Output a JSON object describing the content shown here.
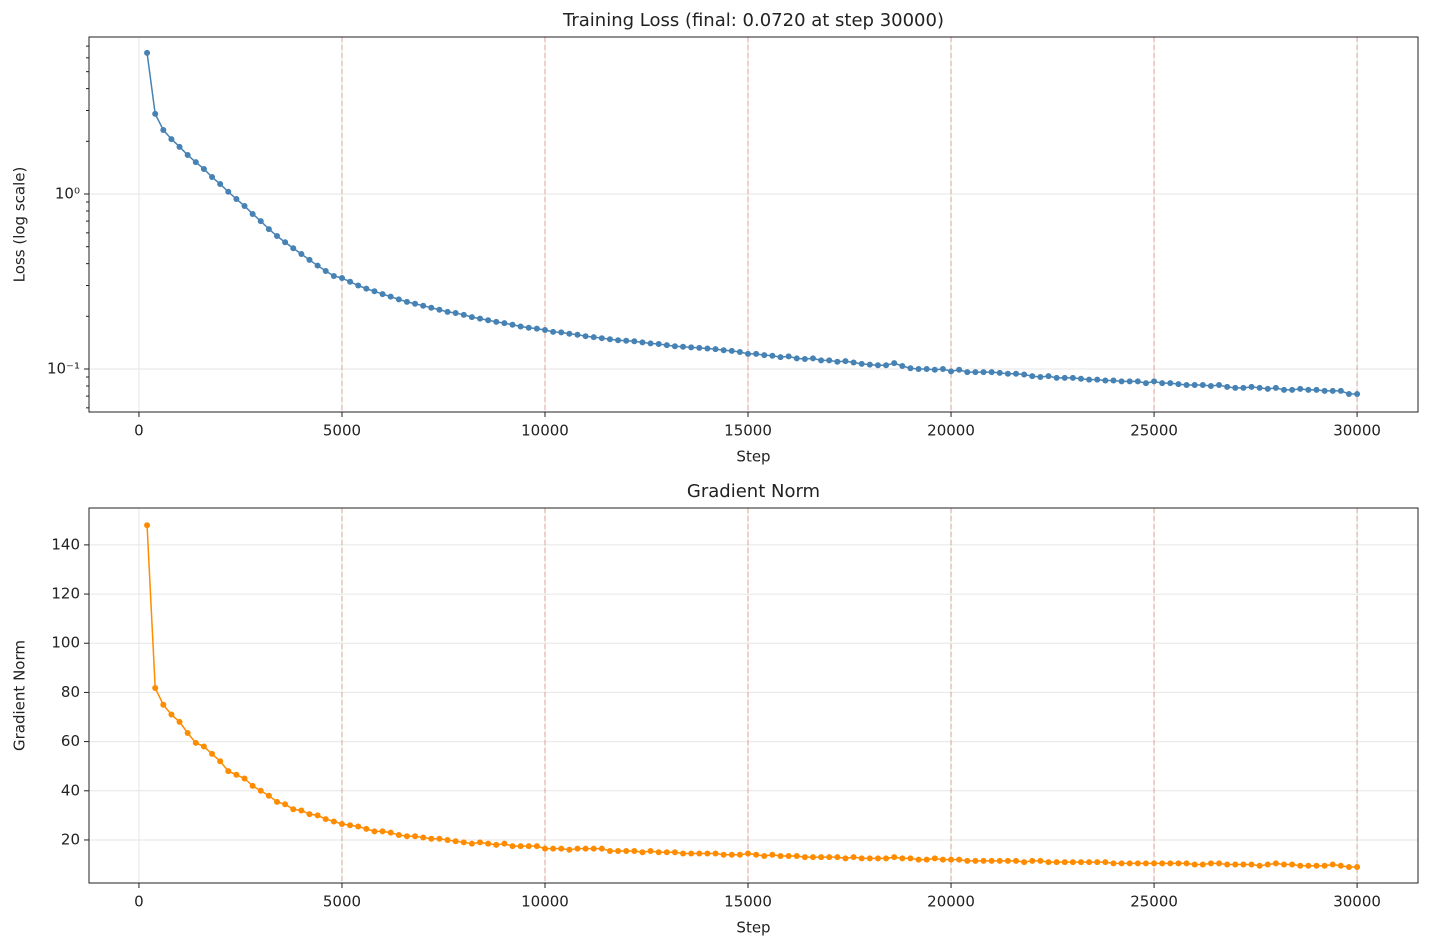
{
  "chart_data": [
    {
      "type": "line",
      "title": "Training Loss (final: 0.0720 at step 30000)",
      "xlabel": "Step",
      "ylabel": "Loss (log scale)",
      "color": "#4682b4",
      "ylog": true,
      "grid": true,
      "xlim": [
        -1230,
        31500
      ],
      "xticks": [
        0,
        5000,
        10000,
        15000,
        20000,
        25000,
        30000
      ],
      "ylim": [
        0.0568,
        7.89
      ],
      "yticks": [
        {
          "value": 0.1,
          "label": "10⁻¹"
        },
        {
          "value": 1,
          "label": "10⁰"
        }
      ],
      "yminorticks": [
        0.06,
        0.07,
        0.08,
        0.09,
        0.2,
        0.3,
        0.4,
        0.5,
        0.6,
        0.7,
        0.8,
        0.9,
        2,
        3,
        4,
        5,
        6,
        7
      ],
      "vlines": [
        5000,
        10000,
        15000,
        20000,
        25000,
        30000
      ],
      "x": [
        200,
        400,
        600,
        800,
        1000,
        1200,
        1400,
        1600,
        1800,
        2000,
        2200,
        2400,
        2600,
        2800,
        3000,
        3200,
        3400,
        3600,
        3800,
        4000,
        4200,
        4400,
        4600,
        4800,
        5000,
        5200,
        5400,
        5600,
        5800,
        6000,
        6200,
        6400,
        6600,
        6800,
        7000,
        7200,
        7400,
        7600,
        7800,
        8000,
        8200,
        8400,
        8600,
        8800,
        9000,
        9200,
        9400,
        9600,
        9800,
        10000,
        10200,
        10400,
        10600,
        10800,
        11000,
        11200,
        11400,
        11600,
        11800,
        12000,
        12200,
        12400,
        12600,
        12800,
        13000,
        13200,
        13400,
        13600,
        13800,
        14000,
        14200,
        14400,
        14600,
        14800,
        15000,
        15200,
        15400,
        15600,
        15800,
        16000,
        16200,
        16400,
        16600,
        16800,
        17000,
        17200,
        17400,
        17600,
        17800,
        18000,
        18200,
        18400,
        18600,
        18800,
        19000,
        19200,
        19400,
        19600,
        19800,
        20000,
        20200,
        20400,
        20600,
        20800,
        21000,
        21200,
        21400,
        21600,
        21800,
        22000,
        22200,
        22400,
        22600,
        22800,
        23000,
        23200,
        23400,
        23600,
        23800,
        24000,
        24200,
        24400,
        24600,
        24800,
        25000,
        25200,
        25400,
        25600,
        25800,
        26000,
        26200,
        26400,
        26600,
        26800,
        27000,
        27200,
        27400,
        27600,
        27800,
        28000,
        28200,
        28400,
        28600,
        28800,
        29000,
        29200,
        29400,
        29600,
        29800,
        30000
      ],
      "values": [
        6.4,
        2.87,
        2.32,
        2.06,
        1.86,
        1.67,
        1.52,
        1.39,
        1.25,
        1.14,
        1.03,
        0.936,
        0.854,
        0.769,
        0.7,
        0.63,
        0.575,
        0.53,
        0.49,
        0.454,
        0.42,
        0.39,
        0.363,
        0.34,
        0.331,
        0.315,
        0.3,
        0.288,
        0.278,
        0.268,
        0.259,
        0.25,
        0.242,
        0.236,
        0.23,
        0.224,
        0.218,
        0.212,
        0.209,
        0.204,
        0.198,
        0.194,
        0.19,
        0.186,
        0.183,
        0.179,
        0.175,
        0.172,
        0.17,
        0.167,
        0.163,
        0.162,
        0.159,
        0.157,
        0.154,
        0.152,
        0.15,
        0.148,
        0.146,
        0.145,
        0.144,
        0.142,
        0.14,
        0.139,
        0.137,
        0.135,
        0.134,
        0.133,
        0.132,
        0.131,
        0.13,
        0.128,
        0.127,
        0.125,
        0.122,
        0.122,
        0.12,
        0.119,
        0.117,
        0.118,
        0.115,
        0.114,
        0.115,
        0.112,
        0.112,
        0.11,
        0.111,
        0.109,
        0.107,
        0.106,
        0.105,
        0.105,
        0.108,
        0.104,
        0.101,
        0.1,
        0.1,
        0.099,
        0.1,
        0.097,
        0.099,
        0.096,
        0.096,
        0.096,
        0.096,
        0.095,
        0.094,
        0.094,
        0.093,
        0.091,
        0.09,
        0.091,
        0.089,
        0.089,
        0.089,
        0.088,
        0.087,
        0.087,
        0.086,
        0.086,
        0.085,
        0.085,
        0.085,
        0.083,
        0.085,
        0.083,
        0.083,
        0.082,
        0.081,
        0.081,
        0.081,
        0.08,
        0.081,
        0.079,
        0.078,
        0.078,
        0.079,
        0.078,
        0.077,
        0.078,
        0.076,
        0.076,
        0.077,
        0.076,
        0.076,
        0.075,
        0.075,
        0.075,
        0.072,
        0.072
      ]
    },
    {
      "type": "line",
      "title": "Gradient Norm",
      "xlabel": "Step",
      "ylabel": "Gradient Norm",
      "color": "#ff8c00",
      "ylog": false,
      "grid": true,
      "xlim": [
        -1230,
        31500
      ],
      "xticks": [
        0,
        5000,
        10000,
        15000,
        20000,
        25000,
        30000
      ],
      "ylim": [
        2.5,
        155
      ],
      "yticks": [
        20,
        40,
        60,
        80,
        100,
        120,
        140
      ],
      "vlines": [
        5000,
        10000,
        15000,
        20000,
        25000,
        30000
      ],
      "x": [
        200,
        400,
        600,
        800,
        1000,
        1200,
        1400,
        1600,
        1800,
        2000,
        2200,
        2400,
        2600,
        2800,
        3000,
        3200,
        3400,
        3600,
        3800,
        4000,
        4200,
        4400,
        4600,
        4800,
        5000,
        5200,
        5400,
        5600,
        5800,
        6000,
        6200,
        6400,
        6600,
        6800,
        7000,
        7200,
        7400,
        7600,
        7800,
        8000,
        8200,
        8400,
        8600,
        8800,
        9000,
        9200,
        9400,
        9600,
        9800,
        10000,
        10200,
        10400,
        10600,
        10800,
        11000,
        11200,
        11400,
        11600,
        11800,
        12000,
        12200,
        12400,
        12600,
        12800,
        13000,
        13200,
        13400,
        13600,
        13800,
        14000,
        14200,
        14400,
        14600,
        14800,
        15000,
        15200,
        15400,
        15600,
        15800,
        16000,
        16200,
        16400,
        16600,
        16800,
        17000,
        17200,
        17400,
        17600,
        17800,
        18000,
        18200,
        18400,
        18600,
        18800,
        19000,
        19200,
        19400,
        19600,
        19800,
        20000,
        20200,
        20400,
        20600,
        20800,
        21000,
        21200,
        21400,
        21600,
        21800,
        22000,
        22200,
        22400,
        22600,
        22800,
        23000,
        23200,
        23400,
        23600,
        23800,
        24000,
        24200,
        24400,
        24600,
        24800,
        25000,
        25200,
        25400,
        25600,
        25800,
        26000,
        26200,
        26400,
        26600,
        26800,
        27000,
        27200,
        27400,
        27600,
        27800,
        28000,
        28200,
        28400,
        28600,
        28800,
        29000,
        29200,
        29400,
        29600,
        29800,
        30000
      ],
      "values": [
        148,
        81.8,
        75,
        71,
        68,
        63.5,
        59.5,
        58,
        55,
        52,
        48,
        46.5,
        45,
        42,
        40,
        38,
        35.5,
        34.5,
        32.5,
        32,
        30.5,
        30,
        28.5,
        27.5,
        26.5,
        26,
        25.5,
        24.5,
        23.5,
        23.5,
        23,
        22,
        21.5,
        21.5,
        21,
        20.5,
        20.5,
        20,
        19.5,
        19,
        18.5,
        19,
        18.5,
        18,
        18.5,
        17.5,
        17.5,
        17.5,
        17.5,
        16.5,
        16.5,
        16.5,
        16,
        16.5,
        16.5,
        16.5,
        16.5,
        15.5,
        15.5,
        15.5,
        15.5,
        15,
        15.5,
        15,
        15,
        15,
        14.5,
        14.5,
        14.5,
        14.5,
        14.5,
        14,
        14,
        14,
        14.5,
        14,
        13.5,
        14,
        13.5,
        13.5,
        13.5,
        13,
        13,
        13,
        13,
        13,
        12.5,
        13,
        12.5,
        12.5,
        12.5,
        12.5,
        13,
        12.5,
        12.5,
        12,
        12,
        12.5,
        12,
        12,
        12,
        11.5,
        11.5,
        11.5,
        11.5,
        11.5,
        11.5,
        11.5,
        11,
        11.5,
        11.5,
        11,
        11,
        11,
        11,
        11,
        11,
        11,
        11,
        10.5,
        10.5,
        10.5,
        10.5,
        10.5,
        10.5,
        10.5,
        10.5,
        10.5,
        10.5,
        10,
        10,
        10.5,
        10.5,
        10,
        10,
        10,
        10,
        9.5,
        10,
        10.5,
        10,
        10,
        9.5,
        9.5,
        9.5,
        9.5,
        10,
        9.5,
        9,
        9
      ]
    }
  ]
}
